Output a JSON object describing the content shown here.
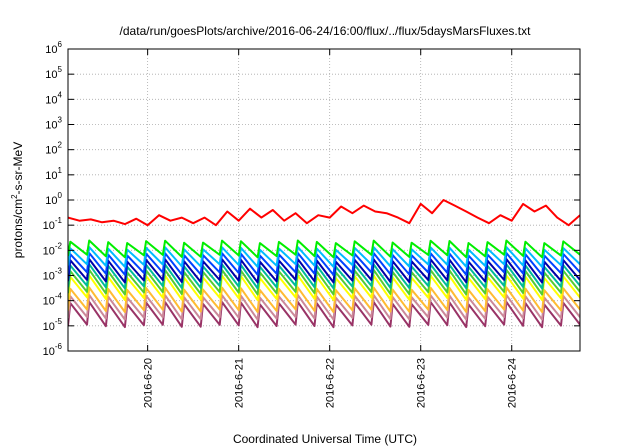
{
  "chart_data": {
    "type": "line",
    "title": "/data/run/goesPlots/archive/2016-06-24/16:00/flux/../flux/5daysMarsFluxes.txt",
    "xlabel": "Coordinated Universal Time (UTC)",
    "ylabel": "protons/cm2-s-sr-MeV",
    "ylabel_parts": {
      "before": "protons/cm",
      "sup": "2",
      "after": "-s-sr-MeV"
    },
    "y_scale": "log",
    "ylim": [
      1e-06,
      1000000.0
    ],
    "y_ticks": [
      {
        "base": "10",
        "exp": "-6",
        "value": 1e-06
      },
      {
        "base": "10",
        "exp": "-5",
        "value": 1e-05
      },
      {
        "base": "10",
        "exp": "-4",
        "value": 0.0001
      },
      {
        "base": "10",
        "exp": "-3",
        "value": 0.001
      },
      {
        "base": "10",
        "exp": "-2",
        "value": 0.01
      },
      {
        "base": "10",
        "exp": "-1",
        "value": 0.1
      },
      {
        "base": "10",
        "exp": "0",
        "value": 1
      },
      {
        "base": "10",
        "exp": "1",
        "value": 10
      },
      {
        "base": "10",
        "exp": "2",
        "value": 100
      },
      {
        "base": "10",
        "exp": "3",
        "value": 1000
      },
      {
        "base": "10",
        "exp": "4",
        "value": 10000
      },
      {
        "base": "10",
        "exp": "5",
        "value": 100000
      },
      {
        "base": "10",
        "exp": "6",
        "value": 1000000
      }
    ],
    "xlim": [
      "2016-06-19T03:00",
      "2016-06-24T18:00"
    ],
    "x_ticks": [
      {
        "label": "2016-6-20",
        "value": "2016-06-20T00:00"
      },
      {
        "label": "2016-6-21",
        "value": "2016-06-21T00:00"
      },
      {
        "label": "2016-6-22",
        "value": "2016-06-22T00:00"
      },
      {
        "label": "2016-6-23",
        "value": "2016-06-23T00:00"
      },
      {
        "label": "2016-6-24",
        "value": "2016-06-24T00:00"
      }
    ],
    "grid": true,
    "legend": "none",
    "series": [
      {
        "color": "#ff0000",
        "points": [
          [
            "2016-06-19T03:00",
            0.2
          ],
          [
            "2016-06-19T06:00",
            0.15
          ],
          [
            "2016-06-19T09:00",
            0.17
          ],
          [
            "2016-06-19T12:00",
            0.13
          ],
          [
            "2016-06-19T15:00",
            0.15
          ],
          [
            "2016-06-19T18:00",
            0.11
          ],
          [
            "2016-06-19T21:00",
            0.18
          ],
          [
            "2016-06-20T00:00",
            0.1
          ],
          [
            "2016-06-20T03:00",
            0.25
          ],
          [
            "2016-06-20T06:00",
            0.15
          ],
          [
            "2016-06-20T09:00",
            0.2
          ],
          [
            "2016-06-20T12:00",
            0.12
          ],
          [
            "2016-06-20T15:00",
            0.2
          ],
          [
            "2016-06-20T18:00",
            0.1
          ],
          [
            "2016-06-20T21:00",
            0.35
          ],
          [
            "2016-06-21T00:00",
            0.15
          ],
          [
            "2016-06-21T03:00",
            0.45
          ],
          [
            "2016-06-21T06:00",
            0.2
          ],
          [
            "2016-06-21T09:00",
            0.4
          ],
          [
            "2016-06-21T12:00",
            0.15
          ],
          [
            "2016-06-21T15:00",
            0.3
          ],
          [
            "2016-06-21T18:00",
            0.12
          ],
          [
            "2016-06-21T21:00",
            0.25
          ],
          [
            "2016-06-22T00:00",
            0.2
          ],
          [
            "2016-06-22T03:00",
            0.55
          ],
          [
            "2016-06-22T06:00",
            0.3
          ],
          [
            "2016-06-22T09:00",
            0.6
          ],
          [
            "2016-06-22T12:00",
            0.35
          ],
          [
            "2016-06-22T15:00",
            0.3
          ],
          [
            "2016-06-22T18:00",
            0.2
          ],
          [
            "2016-06-22T21:00",
            0.12
          ],
          [
            "2016-06-23T00:00",
            0.7
          ],
          [
            "2016-06-23T03:00",
            0.3
          ],
          [
            "2016-06-23T06:00",
            1.0
          ],
          [
            "2016-06-23T09:00",
            0.6
          ],
          [
            "2016-06-23T12:00",
            0.35
          ],
          [
            "2016-06-23T15:00",
            0.2
          ],
          [
            "2016-06-23T18:00",
            0.12
          ],
          [
            "2016-06-23T21:00",
            0.25
          ],
          [
            "2016-06-24T00:00",
            0.15
          ],
          [
            "2016-06-24T03:00",
            0.7
          ],
          [
            "2016-06-24T06:00",
            0.35
          ],
          [
            "2016-06-24T09:00",
            0.6
          ],
          [
            "2016-06-24T12:00",
            0.2
          ],
          [
            "2016-06-24T15:00",
            0.1
          ],
          [
            "2016-06-24T18:00",
            0.25
          ]
        ]
      },
      {
        "color": "#00ee00",
        "hi": 0.022,
        "lo": 0.006
      },
      {
        "color": "#00bbff",
        "hi": 0.012,
        "lo": 0.0025
      },
      {
        "color": "#0044ff",
        "hi": 0.007,
        "lo": 0.0012
      },
      {
        "color": "#0000aa",
        "hi": 0.004,
        "lo": 0.0006
      },
      {
        "color": "#00bb99",
        "hi": 0.0025,
        "lo": 0.00035
      },
      {
        "color": "#55cc33",
        "hi": 0.0015,
        "lo": 0.0002
      },
      {
        "color": "#ffff00",
        "hi": 0.0009,
        "lo": 0.00012
      },
      {
        "color": "#ffbb33",
        "hi": 0.0003,
        "lo": 4e-05
      },
      {
        "color": "#cc8899",
        "hi": 0.00015,
        "lo": 2e-05
      },
      {
        "color": "#993366",
        "hi": 8e-05,
        "lo": 1e-05
      }
    ],
    "sawtooth_period_hours": 5
  }
}
